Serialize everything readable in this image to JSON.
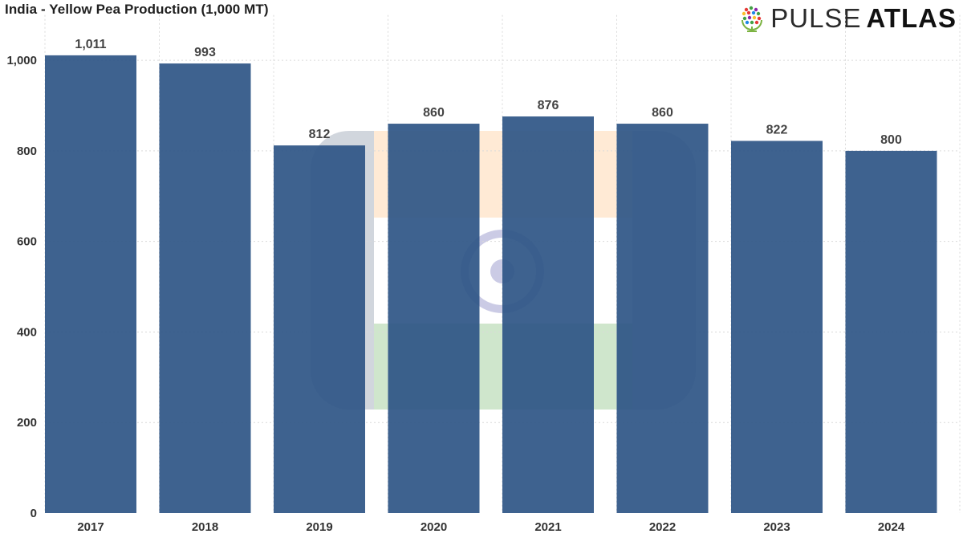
{
  "title": "India - Yellow Pea Production (1,000 MT)",
  "brand": {
    "light_word": "PULSE",
    "bold_word": "ATLAS",
    "icon": "globe-logo-icon"
  },
  "watermark": {
    "icon": "india-flag-watermark",
    "colors": {
      "saffron": "#ff9933",
      "white": "#ffffff",
      "green": "#138808",
      "chakra": "#000080"
    }
  },
  "colors": {
    "bar": "#2e5585",
    "gridline": "#d9d9d9",
    "axis_text": "#333333"
  },
  "chart_data": {
    "type": "bar",
    "title": "India - Yellow Pea Production (1,000 MT)",
    "xlabel": "",
    "ylabel": "",
    "categories": [
      "2017",
      "2018",
      "2019",
      "2020",
      "2021",
      "2022",
      "2023",
      "2024"
    ],
    "values": [
      1011,
      993,
      812,
      860,
      876,
      860,
      822,
      800
    ],
    "data_labels": [
      "1,011",
      "993",
      "812",
      "860",
      "876",
      "860",
      "822",
      "800"
    ],
    "y_ticks": [
      0,
      200,
      400,
      600,
      800,
      1000
    ],
    "y_tick_labels": [
      "0",
      "200",
      "400",
      "600",
      "800",
      "1,000"
    ],
    "ylim": [
      0,
      1100
    ],
    "grid": "dotted",
    "legend": "none"
  }
}
